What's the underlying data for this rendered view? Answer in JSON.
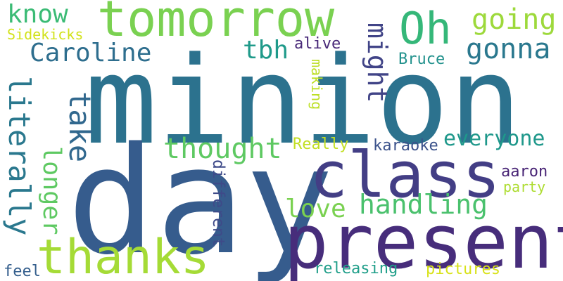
{
  "words": [
    {
      "text": "minion",
      "color": "#2c728e",
      "orientation": "horizontal"
    },
    {
      "text": "day",
      "color": "#365c8d",
      "orientation": "horizontal"
    },
    {
      "text": "present",
      "color": "#472d7b",
      "orientation": "horizontal"
    },
    {
      "text": "class",
      "color": "#433e85",
      "orientation": "horizontal"
    },
    {
      "text": "tomorrow",
      "color": "#7ad151",
      "orientation": "horizontal"
    },
    {
      "text": "thanks",
      "color": "#a5db36",
      "orientation": "horizontal"
    },
    {
      "text": "Oh",
      "color": "#35b779",
      "orientation": "horizontal"
    },
    {
      "text": "Caroline",
      "color": "#2e6e8e",
      "orientation": "horizontal"
    },
    {
      "text": "know",
      "color": "#3bbb75",
      "orientation": "horizontal"
    },
    {
      "text": "going",
      "color": "#9dd93b",
      "orientation": "horizontal"
    },
    {
      "text": "gonna",
      "color": "#2a788e",
      "orientation": "horizontal"
    },
    {
      "text": "tbh",
      "color": "#1f9a8a",
      "orientation": "horizontal"
    },
    {
      "text": "might",
      "color": "#414487",
      "orientation": "vertical"
    },
    {
      "text": "literally",
      "color": "#2a788e",
      "orientation": "vertical"
    },
    {
      "text": "take",
      "color": "#31688e",
      "orientation": "vertical"
    },
    {
      "text": "longer",
      "color": "#5ec962",
      "orientation": "vertical"
    },
    {
      "text": "thought",
      "color": "#5ec962",
      "orientation": "horizontal"
    },
    {
      "text": "handling",
      "color": "#4ac16d",
      "orientation": "horizontal"
    },
    {
      "text": "everyone",
      "color": "#1f988b",
      "orientation": "horizontal"
    },
    {
      "text": "love",
      "color": "#7ad151",
      "orientation": "horizontal"
    },
    {
      "text": "alive",
      "color": "#482878",
      "orientation": "horizontal"
    },
    {
      "text": "Bruce",
      "color": "#21918c",
      "orientation": "horizontal"
    },
    {
      "text": "Sidekicks",
      "color": "#d2e21b",
      "orientation": "horizontal"
    },
    {
      "text": "making",
      "color": "#bddf26",
      "orientation": "vertical"
    },
    {
      "text": "Really",
      "color": "#c2df23",
      "orientation": "horizontal"
    },
    {
      "text": "karaoke",
      "color": "#3b528b",
      "orientation": "horizontal"
    },
    {
      "text": "aaron",
      "color": "#482475",
      "orientation": "horizontal"
    },
    {
      "text": "party",
      "color": "#addc30",
      "orientation": "horizontal"
    },
    {
      "text": "different",
      "color": "#3e4a89",
      "orientation": "vertical"
    },
    {
      "text": "feel",
      "color": "#355f8d",
      "orientation": "horizontal"
    },
    {
      "text": "releasing",
      "color": "#1f9e89",
      "orientation": "horizontal"
    },
    {
      "text": "pictures",
      "color": "#d8e219",
      "orientation": "horizontal"
    }
  ]
}
